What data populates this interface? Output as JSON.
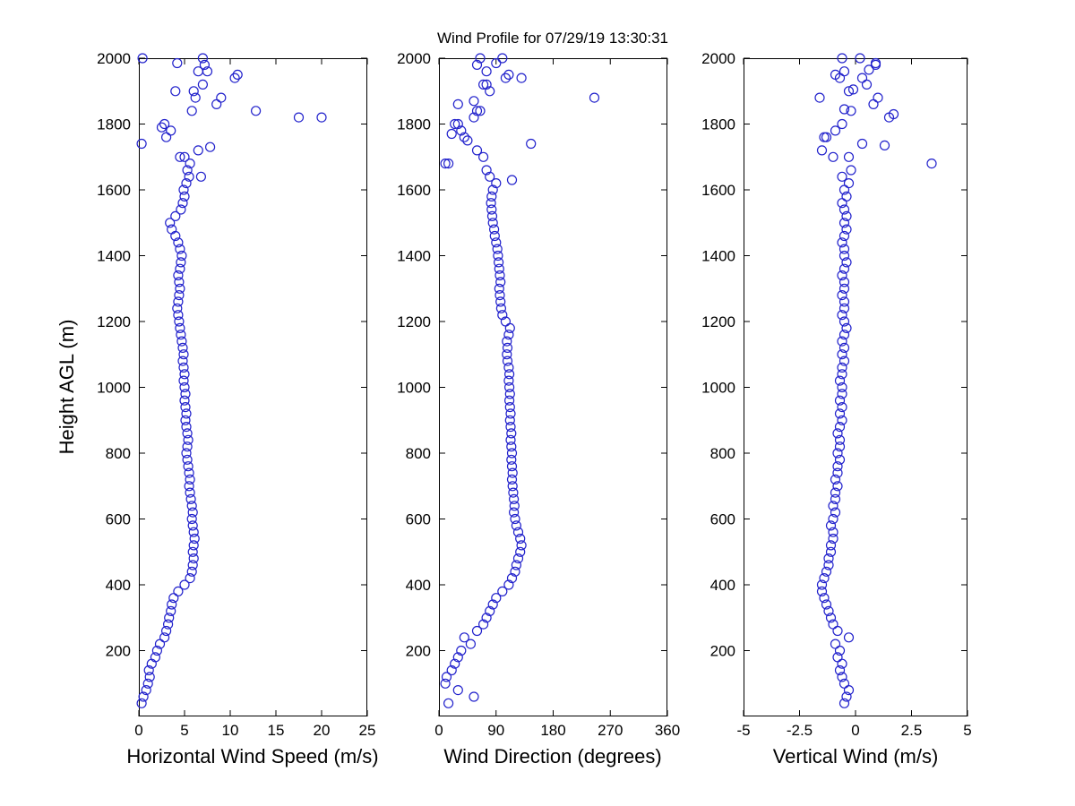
{
  "title": "Wind Profile for  07/29/19 13:30:31",
  "ylabel": "Height AGL (m)",
  "marker": {
    "color": "#2222cc",
    "radius": 5,
    "stroke_width": 1.2
  },
  "axis_color": "#000000",
  "yticks": [
    200,
    400,
    600,
    800,
    1000,
    1200,
    1400,
    1600,
    1800,
    2000
  ],
  "ytick_labels": [
    "200",
    "400",
    "600",
    "800",
    "1000",
    "1200",
    "1400",
    "1600",
    "1800",
    "2000"
  ],
  "heights": [
    40,
    60,
    80,
    100,
    120,
    140,
    160,
    180,
    200,
    220,
    240,
    260,
    280,
    300,
    320,
    340,
    360,
    380,
    400,
    420,
    440,
    460,
    480,
    500,
    520,
    540,
    560,
    580,
    600,
    620,
    640,
    660,
    680,
    700,
    720,
    740,
    760,
    780,
    800,
    820,
    840,
    860,
    880,
    900,
    920,
    940,
    960,
    980,
    1000,
    1020,
    1040,
    1060,
    1080,
    1100,
    1120,
    1140,
    1160,
    1180,
    1200,
    1220,
    1240,
    1260,
    1280,
    1300,
    1320,
    1340,
    1360,
    1380,
    1400,
    1420,
    1440,
    1460,
    1480,
    1500,
    1520,
    1540,
    1560,
    1580,
    1600,
    1620,
    1640,
    1660,
    1680,
    1700,
    1720,
    1740,
    1760,
    1780,
    1800,
    1820,
    1840,
    1860,
    1880,
    1900,
    1920,
    1940,
    1960,
    1980,
    2000
  ],
  "chart_data": [
    {
      "type": "scatter",
      "xlabel": "Horizontal Wind Speed (m/s)",
      "ylabel": "Height AGL (m)",
      "xlim": [
        0,
        25
      ],
      "ylim": [
        0,
        2000
      ],
      "xticks": [
        0,
        5,
        10,
        15,
        20,
        25
      ],
      "xtick_labels": [
        "0",
        "5",
        "10",
        "15",
        "20",
        "25"
      ],
      "grid": false,
      "legend": "none",
      "values": [
        0.3,
        0.5,
        0.8,
        1.0,
        1.2,
        1.1,
        1.4,
        1.8,
        2.0,
        2.3,
        2.8,
        3.0,
        3.2,
        3.3,
        3.5,
        3.6,
        3.8,
        4.3,
        5.0,
        5.6,
        5.8,
        5.9,
        6.0,
        5.9,
        6.0,
        6.1,
        6.0,
        5.9,
        5.8,
        5.9,
        5.8,
        5.7,
        5.6,
        5.5,
        5.6,
        5.5,
        5.4,
        5.3,
        5.2,
        5.3,
        5.4,
        5.3,
        5.2,
        5.1,
        5.2,
        5.1,
        5.0,
        5.1,
        5.0,
        4.9,
        5.0,
        4.9,
        4.8,
        4.9,
        4.8,
        4.7,
        4.6,
        4.5,
        4.4,
        4.3,
        4.2,
        4.3,
        4.4,
        4.5,
        4.4,
        4.3,
        4.5,
        4.6,
        4.7,
        4.5,
        4.3,
        4.0,
        3.6,
        3.4,
        4.0,
        4.6,
        4.8,
        5.0,
        4.9,
        5.2,
        5.5,
        5.3,
        5.6,
        5.0,
        6.5,
        0.3,
        3.0,
        3.5,
        2.8,
        17.5,
        12.8,
        8.5,
        6.2,
        4.0,
        7.0,
        10.5,
        6.5,
        7.2,
        0.4
      ],
      "extra_points": [
        [
          7.8,
          1730
        ],
        [
          20.0,
          1820
        ],
        [
          9.0,
          1880
        ],
        [
          6.0,
          1900
        ],
        [
          10.8,
          1950
        ],
        [
          7.5,
          1960
        ],
        [
          4.2,
          1985
        ],
        [
          7.0,
          2000
        ],
        [
          2.5,
          1790
        ],
        [
          5.8,
          1840
        ],
        [
          6.8,
          1640
        ],
        [
          4.5,
          1700
        ]
      ]
    },
    {
      "type": "scatter",
      "xlabel": "Wind Direction (degrees)",
      "ylabel": "Height AGL (m)",
      "xlim": [
        0,
        360
      ],
      "ylim": [
        0,
        2000
      ],
      "xticks": [
        0,
        90,
        180,
        270,
        360
      ],
      "xtick_labels": [
        "0",
        "90",
        "180",
        "270",
        "360"
      ],
      "grid": false,
      "legend": "none",
      "values": [
        15,
        55,
        30,
        10,
        12,
        20,
        25,
        30,
        35,
        50,
        40,
        60,
        70,
        75,
        80,
        85,
        90,
        100,
        110,
        115,
        120,
        122,
        125,
        128,
        130,
        128,
        125,
        122,
        120,
        118,
        119,
        118,
        117,
        116,
        115,
        116,
        115,
        114,
        115,
        114,
        113,
        114,
        113,
        112,
        113,
        112,
        111,
        112,
        111,
        110,
        111,
        110,
        108,
        107,
        108,
        107,
        110,
        112,
        105,
        100,
        98,
        97,
        96,
        95,
        97,
        96,
        95,
        94,
        93,
        92,
        90,
        88,
        87,
        85,
        84,
        83,
        82,
        83,
        85,
        90,
        80,
        75,
        15,
        70,
        60,
        145,
        40,
        35,
        25,
        55,
        65,
        30,
        245,
        80,
        70,
        105,
        75,
        60,
        65
      ],
      "extra_points": [
        [
          100,
          2000
        ],
        [
          110,
          1950
        ],
        [
          30,
          1800
        ],
        [
          20,
          1770
        ],
        [
          55,
          1870
        ],
        [
          75,
          1920
        ],
        [
          90,
          1985
        ],
        [
          130,
          1940
        ],
        [
          45,
          1750
        ],
        [
          60,
          1840
        ],
        [
          10,
          1680
        ],
        [
          115,
          1630
        ]
      ]
    },
    {
      "type": "scatter",
      "xlabel": "Vertical Wind (m/s)",
      "ylabel": "Height AGL (m)",
      "xlim": [
        -5,
        5
      ],
      "ylim": [
        0,
        2000
      ],
      "xticks": [
        -5,
        -2.5,
        0,
        2.5,
        5
      ],
      "xtick_labels": [
        "-5",
        "-2.5",
        "0",
        "2.5",
        "5"
      ],
      "grid": false,
      "legend": "none",
      "values": [
        -0.5,
        -0.4,
        -0.3,
        -0.5,
        -0.6,
        -0.7,
        -0.6,
        -0.8,
        -0.7,
        -0.9,
        -0.3,
        -0.8,
        -1.0,
        -1.1,
        -1.2,
        -1.3,
        -1.4,
        -1.5,
        -1.5,
        -1.4,
        -1.3,
        -1.2,
        -1.2,
        -1.1,
        -1.1,
        -1.0,
        -1.0,
        -1.1,
        -1.0,
        -0.9,
        -1.0,
        -0.9,
        -0.9,
        -0.8,
        -0.9,
        -0.8,
        -0.8,
        -0.7,
        -0.8,
        -0.7,
        -0.7,
        -0.8,
        -0.7,
        -0.6,
        -0.7,
        -0.6,
        -0.7,
        -0.6,
        -0.6,
        -0.7,
        -0.6,
        -0.6,
        -0.5,
        -0.6,
        -0.5,
        -0.6,
        -0.5,
        -0.4,
        -0.5,
        -0.6,
        -0.5,
        -0.5,
        -0.6,
        -0.5,
        -0.5,
        -0.6,
        -0.5,
        -0.4,
        -0.5,
        -0.5,
        -0.6,
        -0.5,
        -0.4,
        -0.5,
        -0.4,
        -0.5,
        -0.6,
        -0.4,
        -0.5,
        -0.3,
        -0.6,
        -0.2,
        3.4,
        -1.0,
        -1.5,
        0.3,
        -1.3,
        -0.9,
        -0.6,
        1.5,
        -0.2,
        0.8,
        -1.6,
        -0.3,
        0.5,
        -0.7,
        -0.5,
        0.9,
        -0.6
      ],
      "extra_points": [
        [
          1.7,
          1830
        ],
        [
          1.0,
          1880
        ],
        [
          0.3,
          1940
        ],
        [
          0.2,
          2000
        ],
        [
          -0.9,
          1950
        ],
        [
          0.6,
          1965
        ],
        [
          -1.4,
          1760
        ],
        [
          -0.1,
          1905
        ],
        [
          0.9,
          1985
        ],
        [
          -0.5,
          1845
        ],
        [
          1.3,
          1735
        ],
        [
          -0.3,
          1700
        ]
      ]
    }
  ]
}
